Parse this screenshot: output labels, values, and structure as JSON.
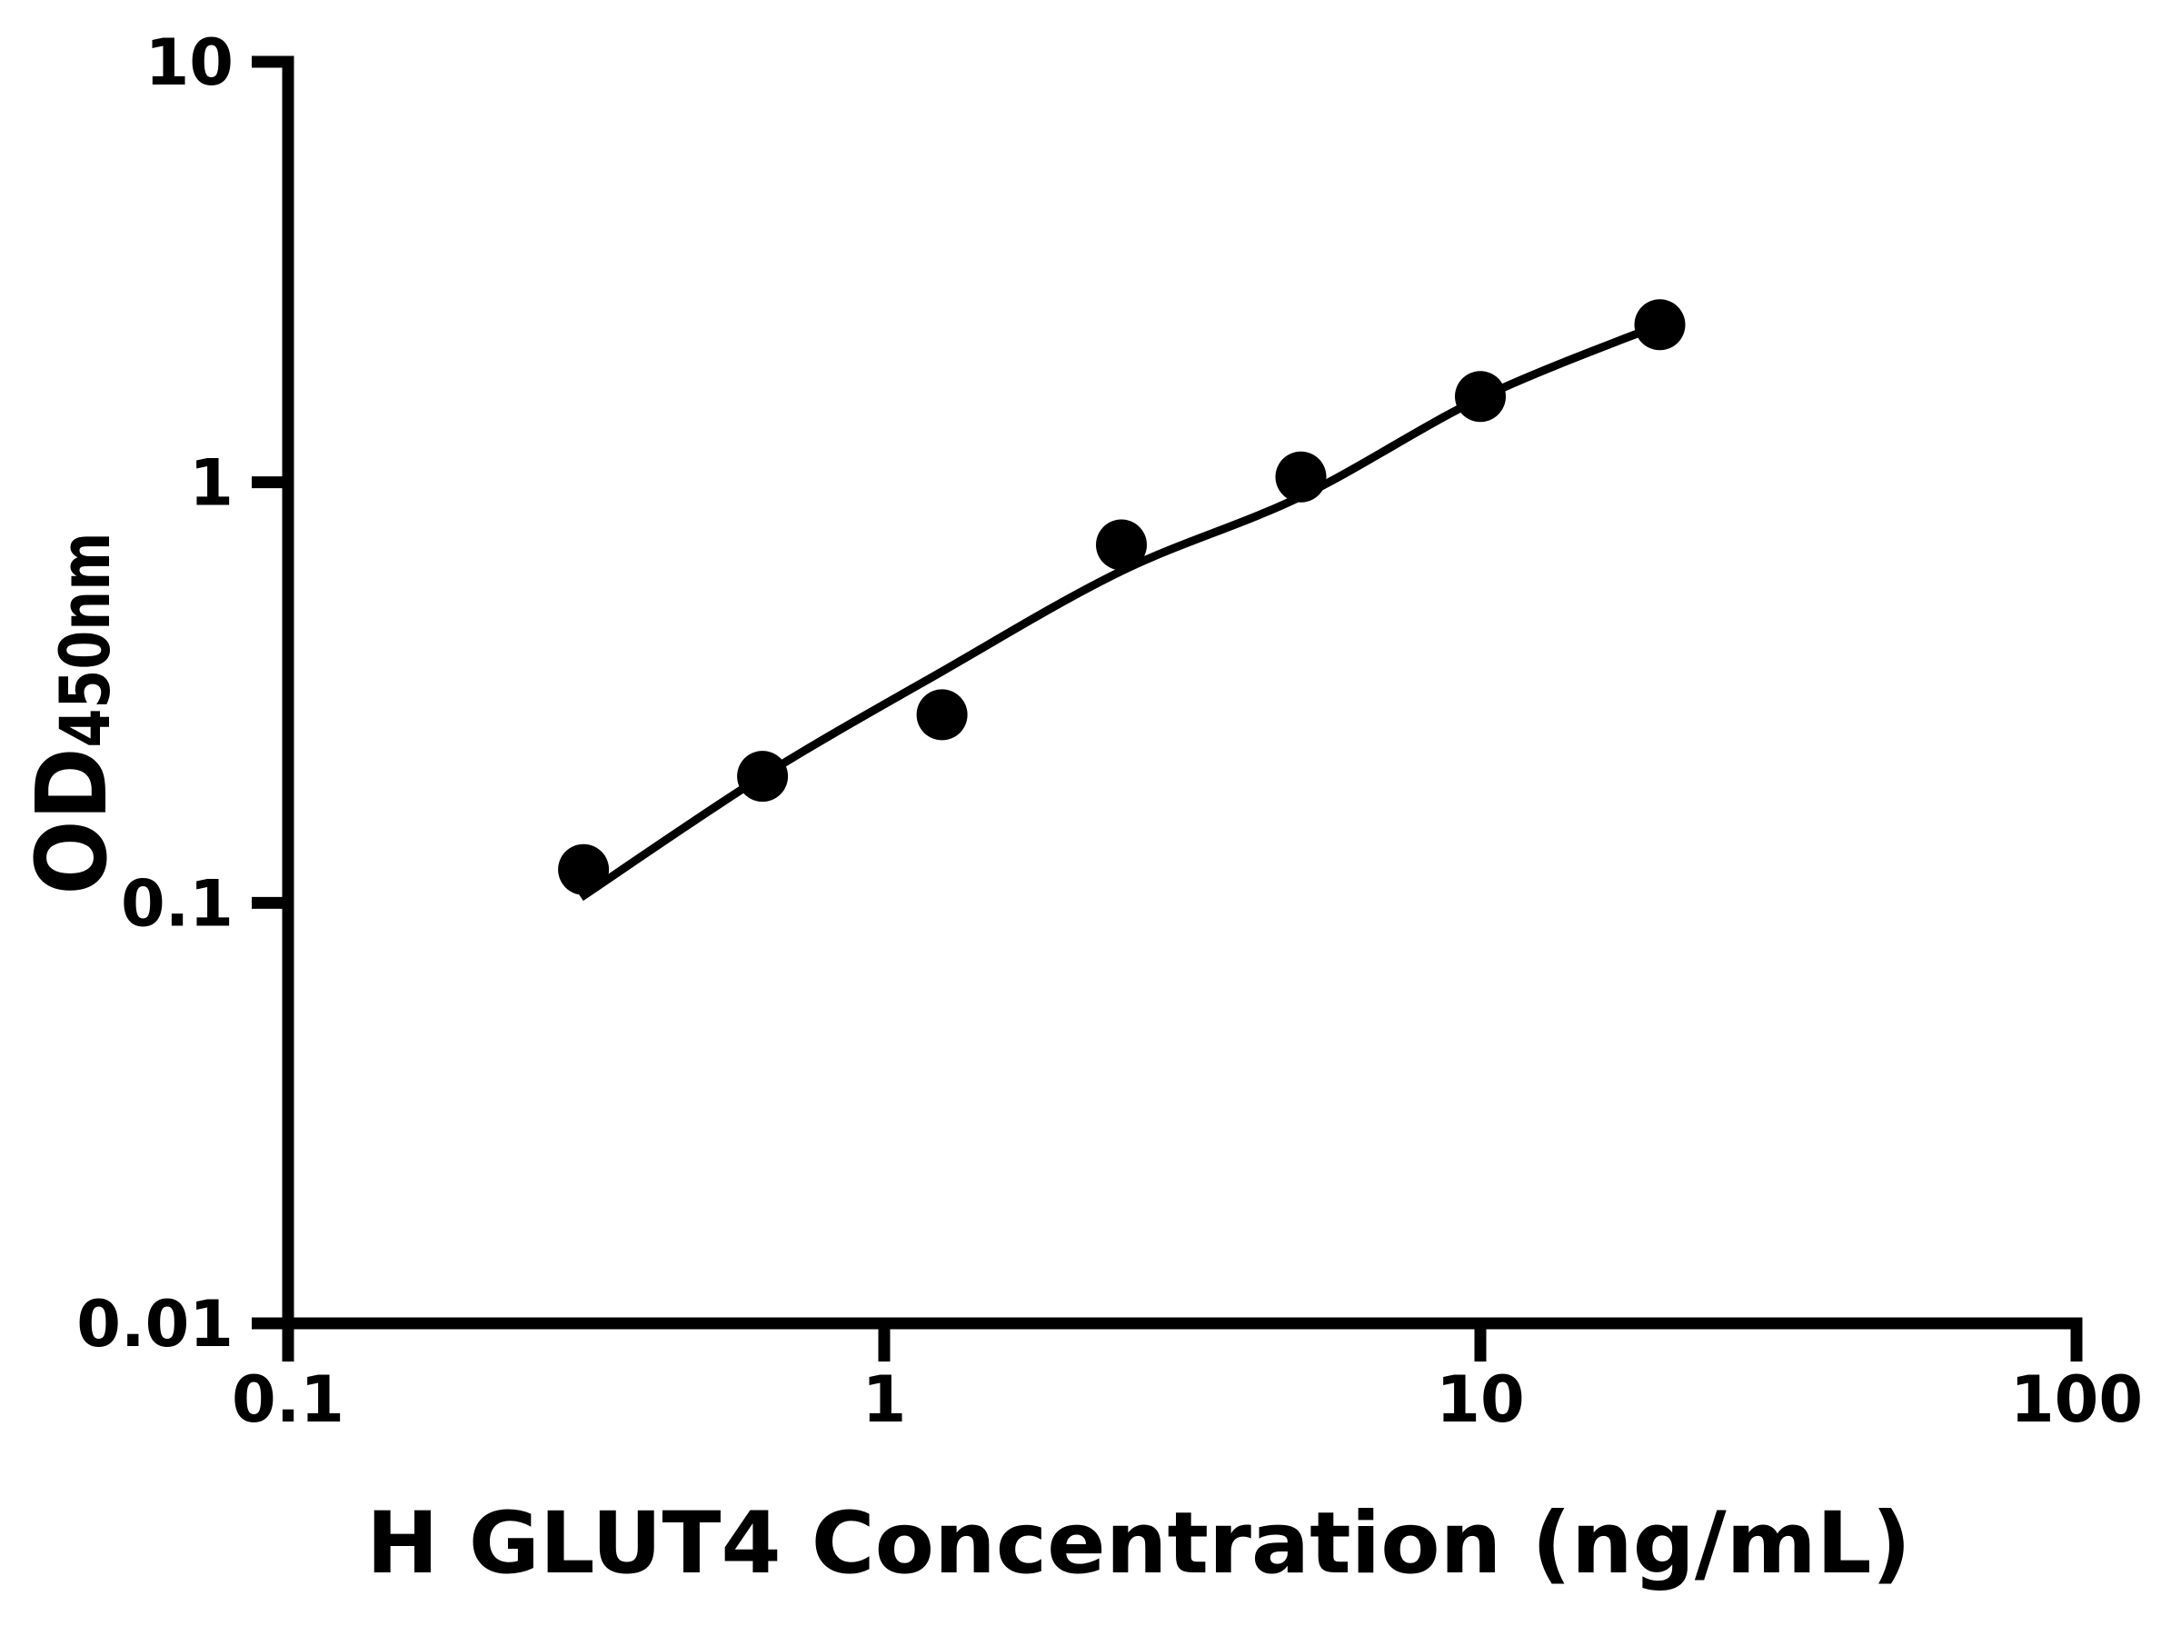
{
  "page": {
    "background": "#ffffff",
    "foreground": "#000000"
  },
  "chart_data": {
    "type": "scatter",
    "title": "",
    "xlabel": "H GLUT4 Concentration (ng/mL)",
    "ylabel_main": "OD",
    "ylabel_sub": "450nm",
    "x_scale": "log",
    "y_scale": "log",
    "xlim": [
      0.1,
      100
    ],
    "ylim": [
      0.01,
      10
    ],
    "grid": false,
    "legend": "none",
    "axis_color": "#000000",
    "marker_color": "#000000",
    "curve_color": "#000000",
    "x_ticks": [
      {
        "value": 0.1,
        "label": "0.1"
      },
      {
        "value": 1,
        "label": "1"
      },
      {
        "value": 10,
        "label": "10"
      },
      {
        "value": 100,
        "label": "100"
      }
    ],
    "y_ticks": [
      {
        "value": 0.01,
        "label": "0.01"
      },
      {
        "value": 0.1,
        "label": "0.1"
      },
      {
        "value": 1,
        "label": "1"
      },
      {
        "value": 10,
        "label": "10"
      }
    ],
    "points": [
      {
        "x": 0.313,
        "y": 0.12
      },
      {
        "x": 0.625,
        "y": 0.2
      },
      {
        "x": 1.25,
        "y": 0.28
      },
      {
        "x": 2.5,
        "y": 0.71
      },
      {
        "x": 5,
        "y": 1.03
      },
      {
        "x": 10,
        "y": 1.6
      },
      {
        "x": 20,
        "y": 2.37
      }
    ],
    "fit_curve": [
      {
        "x": 0.31,
        "y": 0.103
      },
      {
        "x": 0.625,
        "y": 0.2
      },
      {
        "x": 1.25,
        "y": 0.355
      },
      {
        "x": 2.5,
        "y": 0.615
      },
      {
        "x": 5,
        "y": 0.925
      },
      {
        "x": 10,
        "y": 1.585
      },
      {
        "x": 20,
        "y": 2.37
      }
    ]
  }
}
